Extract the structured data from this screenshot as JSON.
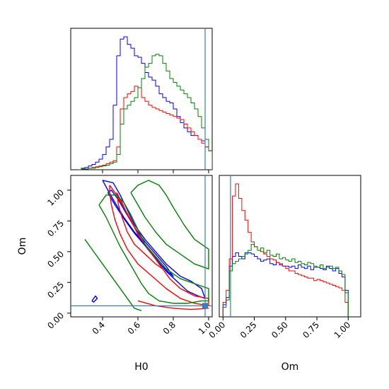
{
  "chart_data": {
    "type": "corner",
    "parameters": [
      "H0",
      "Om"
    ],
    "truth": {
      "H0": 0.98,
      "Om": 0.06,
      "color": "#3b7bbf"
    },
    "series_colors": [
      "#0000ff",
      "#ff0000",
      "#008000"
    ],
    "panels": [
      {
        "id": "hist-H0",
        "type": "histogram",
        "xlim": [
          0.22,
          1.02
        ],
        "bin_edges": [
          0.26,
          0.28,
          0.3,
          0.32,
          0.34,
          0.36,
          0.38,
          0.4,
          0.42,
          0.44,
          0.46,
          0.48,
          0.5,
          0.52,
          0.54,
          0.56,
          0.58,
          0.6,
          0.62,
          0.64,
          0.66,
          0.68,
          0.7,
          0.72,
          0.74,
          0.76,
          0.78,
          0.8,
          0.82,
          0.84,
          0.86,
          0.88,
          0.9,
          0.92,
          0.94,
          0.96,
          0.98,
          1.0,
          1.02
        ],
        "series": [
          {
            "color": "#0000ff",
            "counts": [
              0,
              2,
              3,
              5,
              7,
              10,
              14,
              20,
              30,
              40,
              85,
              150,
              172,
              175,
              165,
              160,
              150,
              148,
              140,
              128,
              122,
              118,
              110,
              100,
              95,
              90,
              88,
              80,
              70,
              62,
              55,
              50,
              45,
              45,
              40,
              38,
              30,
              25
            ]
          },
          {
            "color": "#ff0000",
            "counts": [
              0,
              1,
              1,
              2,
              3,
              4,
              5,
              6,
              8,
              10,
              12,
              30,
              80,
              95,
              100,
              103,
              110,
              108,
              95,
              90,
              85,
              82,
              80,
              78,
              76,
              74,
              72,
              70,
              68,
              66,
              60,
              55,
              50,
              45,
              40,
              35,
              30,
              25
            ]
          },
          {
            "color": "#008000",
            "counts": [
              0,
              1,
              1,
              2,
              2,
              3,
              4,
              5,
              6,
              8,
              10,
              20,
              60,
              80,
              85,
              90,
              95,
              108,
              120,
              135,
              140,
              150,
              152,
              150,
              140,
              130,
              120,
              115,
              110,
              105,
              100,
              95,
              88,
              80,
              70,
              55,
              40,
              25
            ]
          }
        ]
      },
      {
        "id": "hist-Om",
        "type": "histogram",
        "xlim": [
          -0.03,
          1.1
        ],
        "bin_edges": [
          0.0,
          0.025,
          0.05,
          0.075,
          0.1,
          0.125,
          0.15,
          0.175,
          0.2,
          0.225,
          0.25,
          0.275,
          0.3,
          0.325,
          0.35,
          0.375,
          0.4,
          0.425,
          0.45,
          0.475,
          0.5,
          0.525,
          0.55,
          0.575,
          0.6,
          0.625,
          0.65,
          0.675,
          0.7,
          0.725,
          0.75,
          0.775,
          0.8,
          0.825,
          0.85,
          0.875,
          0.9,
          0.925,
          0.95,
          0.975,
          1.0
        ],
        "series": [
          {
            "color": "#0000ff",
            "counts": [
              10,
              16,
              42,
              50,
              53,
              50,
              48,
              53,
              53,
              52,
              50,
              48,
              46,
              47,
              48,
              44,
              43,
              45,
              43,
              42,
              42,
              41,
              42,
              40,
              43,
              41,
              40,
              42,
              39,
              41,
              41,
              40,
              39,
              42,
              40,
              38,
              40,
              36,
              33,
              22
            ]
          },
          {
            "color": "#ff0000",
            "counts": [
              12,
              22,
              48,
              100,
              110,
              98,
              88,
              80,
              70,
              62,
              58,
              55,
              54,
              52,
              50,
              48,
              47,
              45,
              44,
              42,
              40,
              38,
              38,
              36,
              35,
              34,
              33,
              32,
              32,
              30,
              31,
              30,
              29,
              28,
              27,
              26,
              25,
              24,
              22,
              12
            ]
          },
          {
            "color": "#008000",
            "counts": [
              8,
              14,
              38,
              44,
              46,
              48,
              50,
              52,
              55,
              60,
              58,
              55,
              57,
              53,
              55,
              51,
              50,
              52,
              48,
              49,
              47,
              46,
              48,
              45,
              46,
              44,
              43,
              45,
              44,
              42,
              41,
              43,
              40,
              41,
              42,
              40,
              41,
              38,
              35,
              20
            ]
          }
        ]
      },
      {
        "id": "contour-H0-Om",
        "type": "contour",
        "xlim": [
          0.22,
          1.02
        ],
        "ylim": [
          -0.03,
          1.12
        ],
        "series": [
          {
            "color": "#0000ff",
            "contours": [
              [
                [
                  0.4,
                  1.08
                ],
                [
                  0.43,
                  1.0
                ],
                [
                  0.47,
                  0.9
                ],
                [
                  0.52,
                  0.78
                ],
                [
                  0.58,
                  0.66
                ],
                [
                  0.64,
                  0.56
                ],
                [
                  0.7,
                  0.45
                ],
                [
                  0.76,
                  0.34
                ],
                [
                  0.82,
                  0.26
                ],
                [
                  0.88,
                  0.18
                ],
                [
                  0.94,
                  0.14
                ],
                [
                  0.98,
                  0.12
                ],
                [
                  0.96,
                  0.2
                ],
                [
                  0.9,
                  0.26
                ],
                [
                  0.84,
                  0.3
                ],
                [
                  0.76,
                  0.4
                ],
                [
                  0.7,
                  0.5
                ],
                [
                  0.64,
                  0.6
                ],
                [
                  0.58,
                  0.72
                ],
                [
                  0.54,
                  0.84
                ],
                [
                  0.5,
                  0.96
                ],
                [
                  0.46,
                  1.06
                ],
                [
                  0.4,
                  1.08
                ]
              ],
              [
                [
                  0.43,
                  0.98
                ],
                [
                  0.47,
                  0.88
                ],
                [
                  0.52,
                  0.77
                ],
                [
                  0.58,
                  0.65
                ],
                [
                  0.64,
                  0.55
                ],
                [
                  0.7,
                  0.44
                ],
                [
                  0.76,
                  0.35
                ],
                [
                  0.8,
                  0.3
                ],
                [
                  0.76,
                  0.38
                ],
                [
                  0.7,
                  0.48
                ],
                [
                  0.64,
                  0.58
                ],
                [
                  0.58,
                  0.7
                ],
                [
                  0.53,
                  0.82
                ],
                [
                  0.49,
                  0.92
                ],
                [
                  0.45,
                  1.0
                ],
                [
                  0.43,
                  0.98
                ]
              ],
              [
                [
                  0.34,
                  0.1
                ],
                [
                  0.36,
                  0.14
                ],
                [
                  0.37,
                  0.12
                ],
                [
                  0.35,
                  0.09
                ],
                [
                  0.34,
                  0.1
                ]
              ]
            ]
          },
          {
            "color": "#ff0000",
            "contours": [
              [
                [
                  0.44,
                  1.04
                ],
                [
                  0.48,
                  0.96
                ],
                [
                  0.52,
                  0.86
                ],
                [
                  0.56,
                  0.76
                ],
                [
                  0.6,
                  0.64
                ],
                [
                  0.66,
                  0.52
                ],
                [
                  0.72,
                  0.4
                ],
                [
                  0.78,
                  0.28
                ],
                [
                  0.84,
                  0.2
                ],
                [
                  0.92,
                  0.14
                ],
                [
                  1.0,
                  0.12
                ],
                [
                  1.0,
                  0.06
                ],
                [
                  0.92,
                  0.08
                ],
                [
                  0.84,
                  0.12
                ],
                [
                  0.76,
                  0.2
                ],
                [
                  0.68,
                  0.3
                ],
                [
                  0.6,
                  0.4
                ],
                [
                  0.54,
                  0.52
                ],
                [
                  0.5,
                  0.64
                ],
                [
                  0.47,
                  0.76
                ],
                [
                  0.45,
                  0.88
                ],
                [
                  0.44,
                  0.98
                ],
                [
                  0.44,
                  1.04
                ]
              ],
              [
                [
                  0.48,
                  0.98
                ],
                [
                  0.51,
                  0.9
                ],
                [
                  0.54,
                  0.8
                ],
                [
                  0.58,
                  0.7
                ],
                [
                  0.62,
                  0.6
                ],
                [
                  0.66,
                  0.52
                ],
                [
                  0.7,
                  0.44
                ],
                [
                  0.74,
                  0.36
                ],
                [
                  0.7,
                  0.4
                ],
                [
                  0.64,
                  0.48
                ],
                [
                  0.58,
                  0.56
                ],
                [
                  0.54,
                  0.66
                ],
                [
                  0.51,
                  0.78
                ],
                [
                  0.49,
                  0.88
                ],
                [
                  0.48,
                  0.98
                ]
              ],
              [
                [
                  0.6,
                  0.1
                ],
                [
                  0.7,
                  0.06
                ],
                [
                  0.8,
                  0.04
                ],
                [
                  0.9,
                  0.03
                ],
                [
                  1.0,
                  0.04
                ]
              ]
            ]
          },
          {
            "color": "#008000",
            "contours": [
              [
                [
                  0.56,
                  0.98
                ],
                [
                  0.6,
                  1.04
                ],
                [
                  0.66,
                  1.08
                ],
                [
                  0.72,
                  1.04
                ],
                [
                  0.76,
                  0.96
                ],
                [
                  0.8,
                  0.86
                ],
                [
                  0.86,
                  0.72
                ],
                [
                  0.92,
                  0.6
                ],
                [
                  1.0,
                  0.52
                ],
                [
                  1.0,
                  0.36
                ],
                [
                  0.92,
                  0.4
                ],
                [
                  0.84,
                  0.48
                ],
                [
                  0.76,
                  0.56
                ],
                [
                  0.7,
                  0.66
                ],
                [
                  0.64,
                  0.78
                ],
                [
                  0.6,
                  0.88
                ],
                [
                  0.56,
                  0.98
                ]
              ],
              [
                [
                  0.38,
                  0.88
                ],
                [
                  0.42,
                  0.78
                ],
                [
                  0.46,
                  0.66
                ],
                [
                  0.5,
                  0.54
                ],
                [
                  0.54,
                  0.44
                ],
                [
                  0.58,
                  0.34
                ],
                [
                  0.62,
                  0.24
                ],
                [
                  0.66,
                  0.16
                ],
                [
                  0.72,
                  0.1
                ],
                [
                  0.8,
                  0.08
                ],
                [
                  0.88,
                  0.08
                ],
                [
                  0.96,
                  0.1
                ],
                [
                  1.0,
                  0.1
                ],
                [
                  1.0,
                  0.2
                ],
                [
                  0.92,
                  0.24
                ],
                [
                  0.84,
                  0.28
                ],
                [
                  0.76,
                  0.36
                ],
                [
                  0.7,
                  0.46
                ],
                [
                  0.64,
                  0.56
                ],
                [
                  0.6,
                  0.68
                ],
                [
                  0.56,
                  0.8
                ],
                [
                  0.52,
                  0.9
                ],
                [
                  0.48,
                  0.96
                ],
                [
                  0.42,
                  0.96
                ],
                [
                  0.38,
                  0.88
                ]
              ],
              [
                [
                  0.3,
                  0.6
                ],
                [
                  0.34,
                  0.52
                ],
                [
                  0.4,
                  0.4
                ],
                [
                  0.46,
                  0.28
                ],
                [
                  0.52,
                  0.16
                ],
                [
                  0.58,
                  0.04
                ],
                [
                  0.62,
                  0.02
                ]
              ]
            ]
          }
        ]
      }
    ],
    "axes": {
      "H0": {
        "ticks": [
          0.4,
          0.6,
          0.8,
          1.0
        ],
        "tick_labels": [
          "0.4",
          "0.6",
          "0.8",
          "1.0"
        ],
        "label": "H0"
      },
      "Om": {
        "ticks": [
          0.0,
          0.25,
          0.5,
          0.75,
          1.0
        ],
        "tick_labels": [
          "0.00",
          "0.25",
          "0.50",
          "0.75",
          "1.00"
        ],
        "label": "Om"
      }
    },
    "grid": false,
    "legend": "none"
  }
}
